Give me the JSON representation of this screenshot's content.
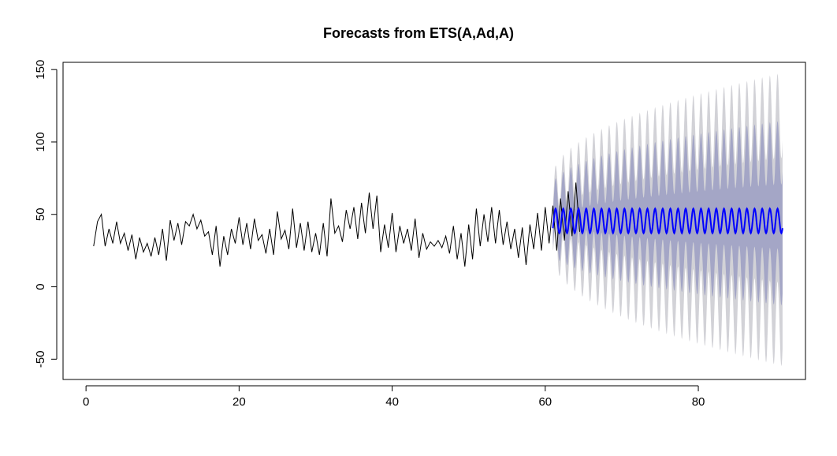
{
  "chart_data": {
    "type": "line",
    "title": "Forecasts from ETS(A,Ad,A)",
    "xlabel": "",
    "ylabel": "",
    "xlim": [
      -3,
      94
    ],
    "ylim": [
      -64,
      155
    ],
    "x_ticks": [
      0,
      20,
      40,
      60,
      80
    ],
    "y_ticks": [
      -50,
      0,
      50,
      100,
      150
    ],
    "grid": false,
    "legend": "none",
    "seasonal_period": 1,
    "history": {
      "x_start": 1.0,
      "x_step": 0.5,
      "y": [
        28,
        45,
        50,
        28,
        40,
        30,
        45,
        30,
        37,
        25,
        36,
        19,
        34,
        24,
        30,
        21,
        34,
        22,
        40,
        18,
        46,
        32,
        44,
        29,
        45,
        42,
        50,
        40,
        46,
        35,
        38,
        22,
        42,
        14,
        35,
        22,
        40,
        30,
        48,
        29,
        44,
        26,
        47,
        32,
        36,
        23,
        40,
        22,
        52,
        33,
        39,
        26,
        54,
        27,
        44,
        25,
        45,
        24,
        37,
        22,
        44,
        21,
        61,
        37,
        42,
        31,
        53,
        40,
        55,
        33,
        58,
        37,
        65,
        40,
        63,
        24,
        43,
        27,
        51,
        24,
        42,
        30,
        40,
        25,
        47,
        20,
        37,
        26,
        31,
        28,
        32,
        27,
        35,
        23,
        42,
        19,
        37,
        14,
        43,
        19,
        54,
        28,
        50,
        31,
        55,
        30,
        53,
        29,
        45,
        26,
        40,
        20,
        41,
        15,
        43,
        26,
        51,
        25,
        55,
        30,
        56,
        25,
        61,
        32,
        66,
        35,
        72,
        38
      ],
      "color": "#000000"
    },
    "forecast": {
      "x_start": 61.0,
      "x_step": 1.0,
      "peak_x_offset": 0.35,
      "mean_low": 37,
      "mean_high": 54,
      "color": "#0000ff",
      "band80": {
        "color": "#a4a6c6",
        "upper_high": [
          70,
          115
        ],
        "lower_low": [
          24,
          -13
        ]
      },
      "band95": {
        "color": "#d2d2d7",
        "upper_high": [
          76,
          148
        ],
        "lower_low": [
          20,
          -55
        ]
      },
      "x_end": 91.0
    }
  }
}
